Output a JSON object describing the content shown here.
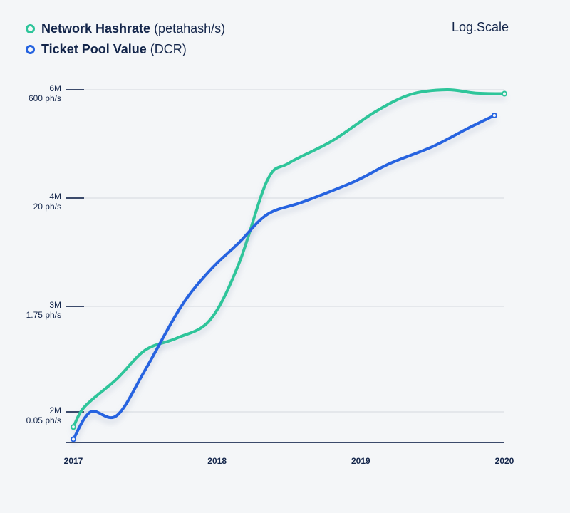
{
  "legend": [
    {
      "name": "Network Hashrate",
      "unit": "(petahash/s)",
      "color": "#2dc59a"
    },
    {
      "name": "Ticket Pool Value",
      "unit": "(DCR)",
      "color": "#2563e0"
    }
  ],
  "scale_label": "Log.Scale",
  "chart_data": {
    "type": "line",
    "title": "",
    "xlabel": "",
    "ylabel": "",
    "scale": "log",
    "grid": true,
    "legend_position": "top-left",
    "x_ticks": [
      "2017",
      "2018",
      "2019",
      "2020"
    ],
    "xlim": [
      2017,
      2020
    ],
    "y_ticks": [
      {
        "left": "6M",
        "right": "600 ph/s"
      },
      {
        "left": "4M",
        "right": "20 ph/s"
      },
      {
        "left": "3M",
        "right": "1.75 ph/s"
      },
      {
        "left": "2M",
        "right": "0.05 ph/s"
      }
    ],
    "series": [
      {
        "name": "Network Hashrate",
        "unit": "petahash/s",
        "color": "#2dc59a",
        "x": [
          2017.0,
          2017.08,
          2017.3,
          2017.5,
          2017.72,
          2017.95,
          2018.15,
          2018.35,
          2018.5,
          2018.8,
          2019.1,
          2019.35,
          2019.6,
          2019.8,
          2020.0
        ],
        "y": [
          0.03,
          0.06,
          0.15,
          0.4,
          0.6,
          1.1,
          4.5,
          35,
          60,
          120,
          300,
          520,
          600,
          540,
          530
        ]
      },
      {
        "name": "Ticket Pool Value",
        "unit": "DCR",
        "color": "#2563e0",
        "x": [
          2017.0,
          2017.12,
          2017.3,
          2017.5,
          2017.75,
          2017.95,
          2018.15,
          2018.35,
          2018.6,
          2018.95,
          2019.2,
          2019.5,
          2019.75,
          2019.93
        ],
        "y": [
          1800000,
          2000000,
          1970000,
          2350000,
          3000000,
          3300000,
          3550000,
          3830000,
          3960000,
          4250000,
          4550000,
          4850000,
          5200000,
          5450000
        ]
      }
    ]
  }
}
